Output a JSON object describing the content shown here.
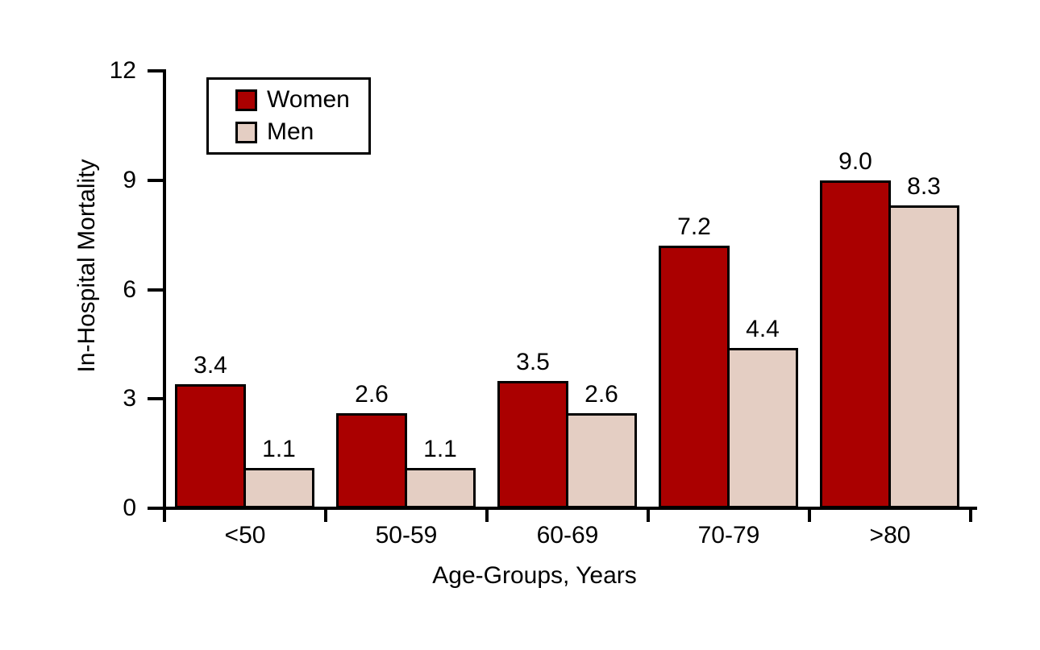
{
  "chart_data": {
    "type": "bar",
    "title": "",
    "categories": [
      "<50",
      "50-59",
      "60-69",
      "70-79",
      ">80"
    ],
    "series": [
      {
        "name": "Women",
        "color": "#AA0000",
        "values": [
          3.4,
          2.6,
          3.5,
          7.2,
          9.0
        ]
      },
      {
        "name": "Men",
        "color": "#E4CEC3",
        "values": [
          1.1,
          1.1,
          2.6,
          4.4,
          8.3
        ]
      }
    ],
    "xlabel": "Age-Groups, Years",
    "ylabel": "In-Hospital Mortality",
    "ylim": [
      0,
      12
    ],
    "yticks": [
      0,
      3,
      6,
      9,
      12
    ],
    "grid": false,
    "legend_position": "top-left",
    "value_labels": true,
    "value_label_decimals": 1,
    "background_color": "#ffffff",
    "axis_color": "#000000"
  }
}
